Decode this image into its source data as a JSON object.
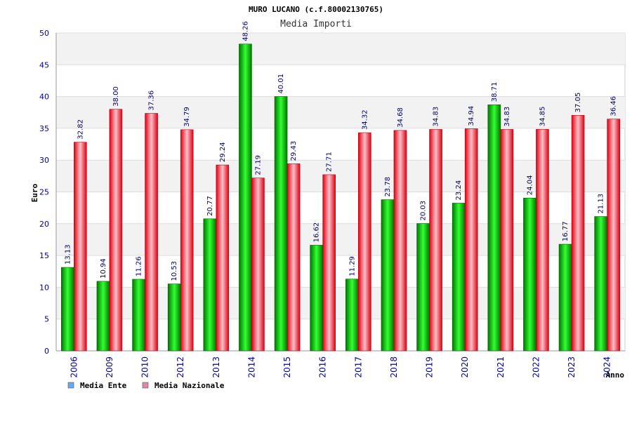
{
  "chart_data": {
    "type": "bar",
    "title": "MURO LUCANO (c.f.80002130765)",
    "subtitle": "Media Importi",
    "xlabel": "Anno",
    "ylabel": "Euro",
    "ylim": [
      0,
      50
    ],
    "yticks": [
      0,
      5,
      10,
      15,
      20,
      25,
      30,
      35,
      40,
      45,
      50
    ],
    "grid": true,
    "legend_position": "bottom-left",
    "categories": [
      "2006",
      "2009",
      "2010",
      "2012",
      "2013",
      "2014",
      "2015",
      "2016",
      "2017",
      "2018",
      "2019",
      "2020",
      "2021",
      "2022",
      "2023",
      "2024"
    ],
    "series": [
      {
        "name": "Media Ente",
        "bar_color": "#00bb00",
        "legend_color": "#66aaee",
        "values": [
          13.13,
          10.94,
          11.26,
          10.53,
          20.77,
          48.26,
          40.01,
          16.62,
          11.29,
          23.78,
          20.03,
          23.24,
          38.71,
          24.04,
          16.77,
          21.13
        ],
        "labels": [
          "13.13",
          "10.94",
          "11.26",
          "10.53",
          "20.77",
          "48.26",
          "40.01",
          "16.62",
          "11.29",
          "23.78",
          "20.03",
          "23.24",
          "38.71",
          "24.04",
          "16.77",
          "21.13"
        ]
      },
      {
        "name": "Media Nazionale",
        "bar_color": "#ee2233",
        "legend_color": "#dd88aa",
        "values": [
          32.82,
          38.0,
          37.36,
          34.79,
          29.24,
          27.19,
          29.43,
          27.71,
          34.32,
          34.68,
          34.83,
          34.94,
          34.83,
          34.85,
          37.05,
          36.46
        ],
        "labels": [
          "32.82",
          "38.00",
          "37.36",
          "34.79",
          "29.24",
          "27.19",
          "29.43",
          "27.71",
          "34.32",
          "34.68",
          "34.83",
          "34.94",
          "34.83",
          "34.85",
          "37.05",
          "36.46"
        ]
      }
    ]
  }
}
